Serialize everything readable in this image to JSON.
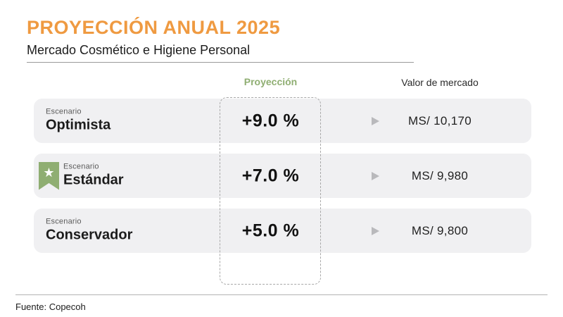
{
  "header": {
    "title": "PROYECCIÓN ANUAL 2025",
    "subtitle": "Mercado Cosmético e Higiene Personal"
  },
  "columns": {
    "projection_label": "Proyección",
    "market_value_label": "Valor de mercado"
  },
  "table": {
    "rows": [
      {
        "label_small": "Escenario",
        "label": "Optimista",
        "projection": "+9.0 %",
        "market_value": "MS/ 10,170",
        "starred": false
      },
      {
        "label_small": "Escenario",
        "label": "Estándar",
        "projection": "+7.0 %",
        "market_value": "MS/ 9,980",
        "starred": true
      },
      {
        "label_small": "Escenario",
        "label": "Conservador",
        "projection": "+5.0 %",
        "market_value": "MS/ 9,800",
        "starred": false
      }
    ]
  },
  "icons": {
    "star": "★"
  },
  "footer": {
    "source": "Fuente: Copecoh"
  },
  "colors": {
    "accent_orange": "#ef9a41",
    "accent_green": "#8fae72",
    "row_background": "#f0f0f2",
    "text_dark": "#1c1c1c",
    "arrow_gray": "#b9b9bc"
  },
  "chart_data": {
    "type": "table",
    "title": "PROYECCIÓN ANUAL 2025",
    "subtitle": "Mercado Cosmético e Higiene Personal",
    "columns": [
      "Escenario",
      "Proyección",
      "Valor de mercado"
    ],
    "rows": [
      [
        "Optimista",
        "+9.0 %",
        "MS/ 10,170"
      ],
      [
        "Estándar",
        "+7.0 %",
        "MS/ 9,980"
      ],
      [
        "Conservador",
        "+5.0 %",
        "MS/ 9,800"
      ]
    ],
    "projection_values_pct": [
      9.0,
      7.0,
      5.0
    ],
    "market_values": [
      10170,
      9980,
      9800
    ],
    "highlighted_row": "Estándar",
    "source": "Fuente: Copecoh"
  }
}
